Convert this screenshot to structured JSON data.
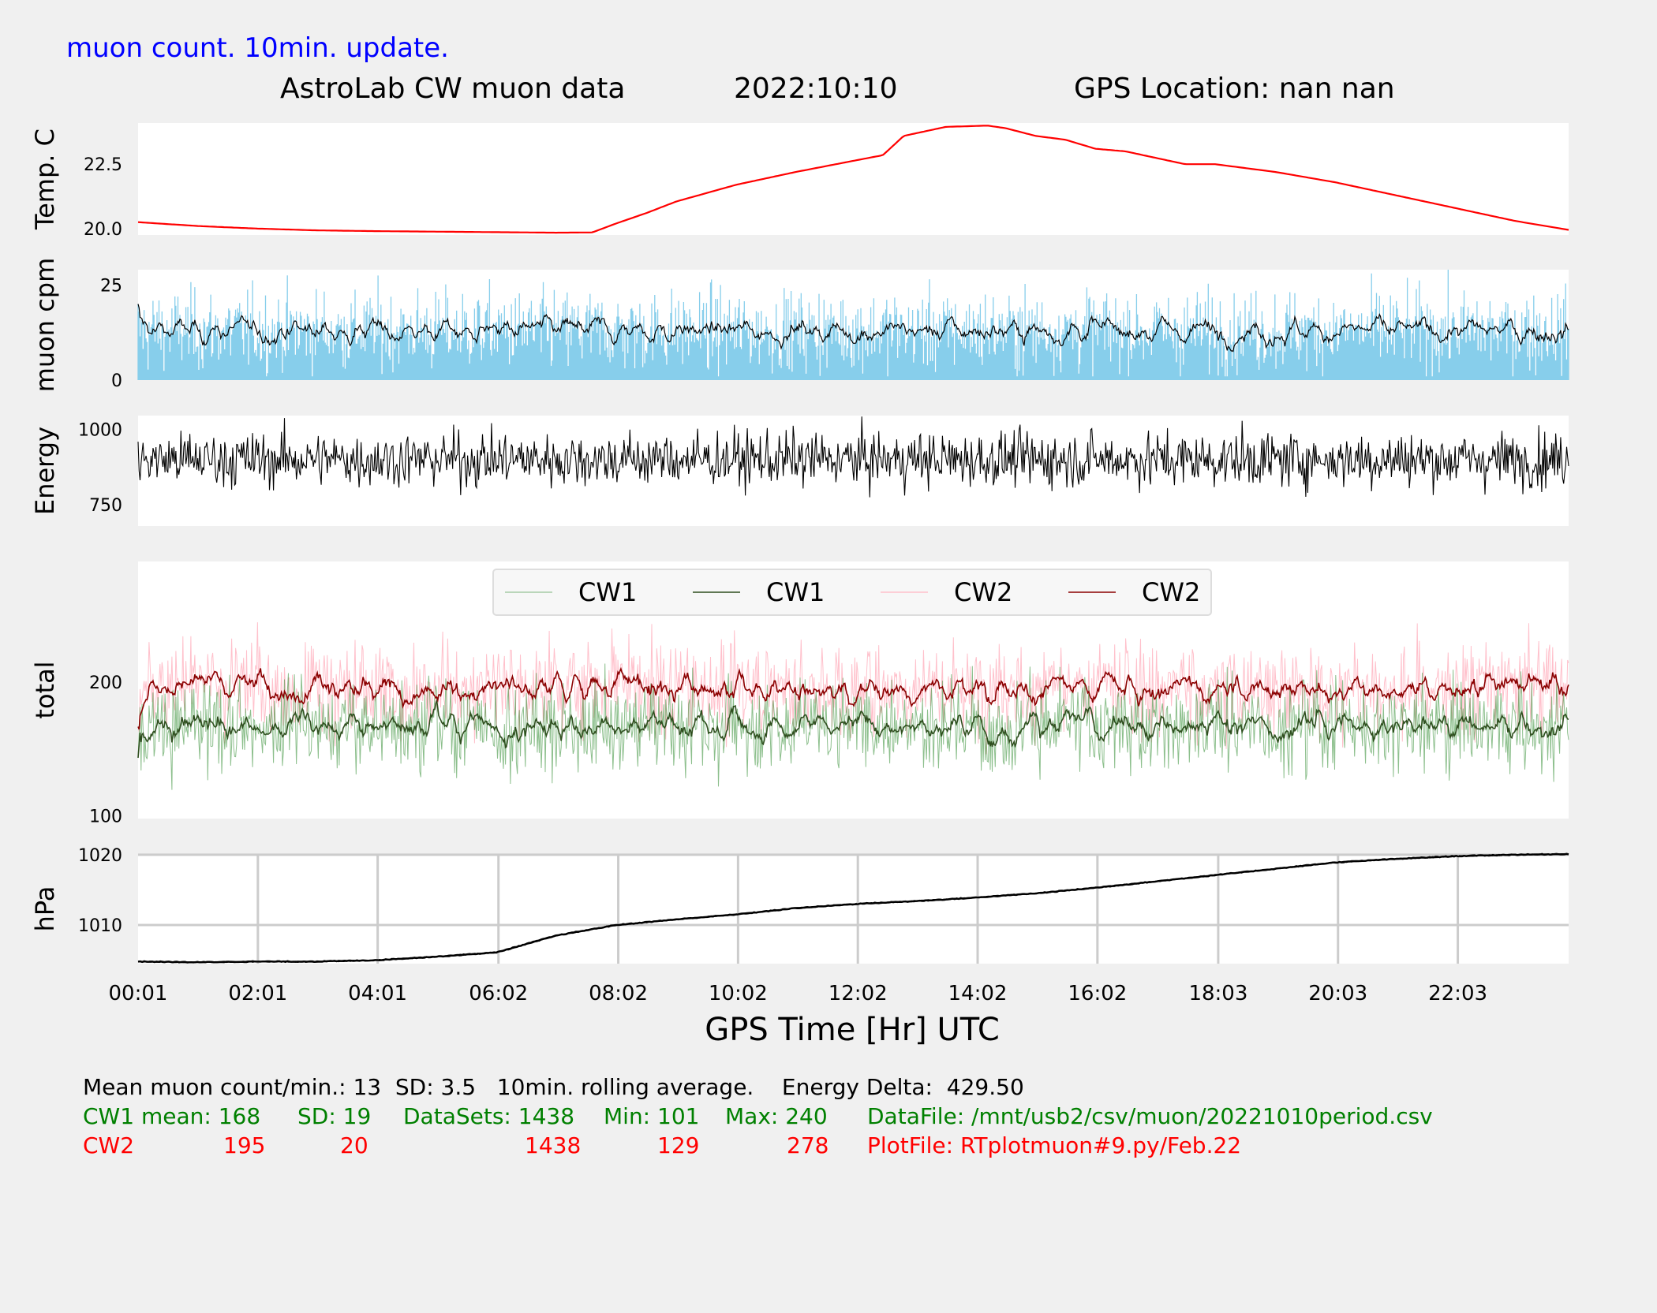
{
  "header": {
    "update_note": "muon count.  10min. update.",
    "title": "AstroLab CW muon data",
    "date": "2022:10:10",
    "location": "GPS Location: nan   nan"
  },
  "xaxis": {
    "label": "GPS Time  [Hr] UTC",
    "ticks": [
      "00:01",
      "02:01",
      "04:01",
      "06:02",
      "08:02",
      "10:02",
      "12:02",
      "14:02",
      "16:02",
      "18:03",
      "20:03",
      "22:03"
    ],
    "range_hours": [
      0.0167,
      23.9
    ]
  },
  "chart_data": [
    {
      "type": "line",
      "ylabel": "Temp. C",
      "yticks": [
        "20.0",
        "22.5"
      ],
      "ylim": [
        19.75,
        24.1
      ],
      "grid": false,
      "colors": {
        "line": "#ff0000"
      },
      "x_hours": [
        0.02,
        1.0,
        2.0,
        3.0,
        4.0,
        5.0,
        6.0,
        7.0,
        7.6,
        8.0,
        8.5,
        9.0,
        10.0,
        11.0,
        12.0,
        12.45,
        12.8,
        13.5,
        14.2,
        14.5,
        15.0,
        15.5,
        16.0,
        16.5,
        17.0,
        17.5,
        18.0,
        19.0,
        20.0,
        21.0,
        22.0,
        23.0,
        23.9
      ],
      "y": [
        20.25,
        20.1,
        20.0,
        19.93,
        19.9,
        19.88,
        19.86,
        19.84,
        19.85,
        20.2,
        20.6,
        21.05,
        21.7,
        22.2,
        22.65,
        22.85,
        23.6,
        23.95,
        24.0,
        23.9,
        23.6,
        23.45,
        23.1,
        23.0,
        22.75,
        22.5,
        22.5,
        22.2,
        21.8,
        21.3,
        20.8,
        20.3,
        19.95
      ]
    },
    {
      "type": "bar",
      "ylabel": "muon cpm",
      "yticks": [
        "0",
        "25"
      ],
      "ylim": [
        0,
        29
      ],
      "grid": false,
      "mean_per_min": 13,
      "sd": 3.5,
      "peak": 29,
      "colors": {
        "bars": "#87ceeb",
        "rolling": "#000000"
      },
      "series": [
        {
          "name": "count/min",
          "kind": "bars"
        },
        {
          "name": "10min rolling average",
          "kind": "line"
        }
      ]
    },
    {
      "type": "line",
      "ylabel": "Energy",
      "yticks": [
        "750",
        "1000"
      ],
      "ylim": [
        680,
        1045
      ],
      "grid": false,
      "mean": 900,
      "noise_sd": 45,
      "colors": {
        "line": "#000000"
      }
    },
    {
      "type": "line",
      "ylabel": "total",
      "yticks": [
        "100",
        "200"
      ],
      "ylim": [
        98,
        290
      ],
      "grid": false,
      "legend": "top-center",
      "colors": {
        "CW1_raw": "#2e8b2e",
        "CW1_avg": "#2f4f1f",
        "CW2_raw": "#ffc0cb",
        "CW2_avg": "#8b0000"
      },
      "series": [
        {
          "name": "CW1",
          "mean": 168,
          "sd": 19,
          "min": 101,
          "max": 240,
          "kind": "raw"
        },
        {
          "name": "CW1",
          "kind": "rolling"
        },
        {
          "name": "CW2",
          "mean": 195,
          "sd": 20,
          "min": 129,
          "max": 278,
          "kind": "raw"
        },
        {
          "name": "CW2",
          "kind": "rolling"
        }
      ]
    },
    {
      "type": "line",
      "ylabel": "hPa",
      "yticks": [
        "1010",
        "1020"
      ],
      "ylim": [
        1004.5,
        1020.1
      ],
      "grid": true,
      "colors": {
        "line": "#000000",
        "grid": "#cccccc"
      },
      "x_hours": [
        0.02,
        1.0,
        2.0,
        3.0,
        4.0,
        5.0,
        6.0,
        7.0,
        8.0,
        9.0,
        10.0,
        11.0,
        12.0,
        13.0,
        14.0,
        15.0,
        16.0,
        17.0,
        18.0,
        19.0,
        20.0,
        21.0,
        22.0,
        23.0,
        23.9
      ],
      "y": [
        1004.8,
        1004.7,
        1004.8,
        1004.8,
        1005.0,
        1005.5,
        1006.1,
        1008.5,
        1010.0,
        1010.8,
        1011.5,
        1012.4,
        1013.0,
        1013.4,
        1013.9,
        1014.5,
        1015.3,
        1016.2,
        1017.1,
        1018.0,
        1018.9,
        1019.4,
        1019.8,
        1020.0,
        1020.1
      ]
    }
  ],
  "stats": {
    "line1": "Mean muon count/min.: 13  SD: 3.5   10min. rolling average.    Energy Delta:  429.50",
    "cw1": {
      "label": "CW1 mean: 168",
      "sd": "SD: 19",
      "datasets": "DataSets: 1438",
      "min": "Min: 101",
      "max": "Max: 240",
      "file": "DataFile: /mnt/usb2/csv/muon/20221010period.csv"
    },
    "cw2": {
      "label": "CW2",
      "mean": "195",
      "sd": "20",
      "datasets": "1438",
      "min": "129",
      "max": "278",
      "file": "PlotFile: RTplotmuon#9.py/Feb.22"
    },
    "colors": {
      "line1": "#000000",
      "cw1": "#008000",
      "cw2": "#ff0000"
    }
  },
  "colors": {
    "title_blue": "#0000ff",
    "axes_face": "#ffffff",
    "figure_bg": "#f0f0f0"
  }
}
